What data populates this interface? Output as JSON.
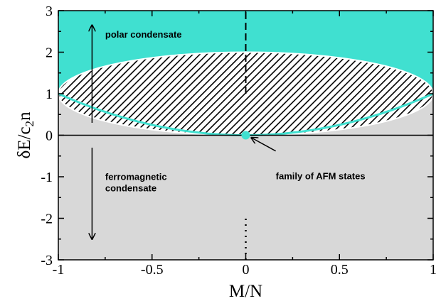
{
  "chart_data": {
    "type": "area",
    "xlabel": "M/N",
    "ylabel_main": "δE/c",
    "ylabel_sub": "2",
    "ylabel_tail": "n",
    "xlim": [
      -1,
      1
    ],
    "ylim": [
      -3,
      3
    ],
    "xticks": [
      -1,
      -0.5,
      0,
      0.5,
      1
    ],
    "xtick_labels": [
      "-1",
      "-0.5",
      "0",
      "0.5",
      "1"
    ],
    "yticks": [
      -3,
      -2,
      -1,
      0,
      1,
      2,
      3
    ],
    "ytick_labels": [
      "-3",
      "-2",
      "-1",
      "0",
      "1",
      "2",
      "3"
    ],
    "regions": {
      "upper_fill_color": "#40E0D0",
      "lower_fill_color": "#D8D8D8",
      "ellipse": {
        "center": [
          0,
          1
        ],
        "radius_x": 1,
        "radius_y": 1,
        "fill": "hatched",
        "outline_color": "#ffffff"
      }
    },
    "boundary_curve": {
      "type": "parabola",
      "formula": "y = x^2",
      "color": "#40E0D0"
    },
    "point": {
      "x": 0,
      "y": 0,
      "color": "#40E0D0"
    },
    "dashed_line": {
      "x": 0,
      "y_from": 1,
      "y_to": 3
    },
    "dotted_line": {
      "x": 0,
      "y_from": -3,
      "y_to": -2
    },
    "annotations": {
      "polar": "polar condensate",
      "ferro_line1": "ferromagnetic",
      "ferro_line2": "condensate",
      "afm": "family of AFM states"
    },
    "arrows": {
      "up_arrow": {
        "x": -0.82,
        "y_from": 0.3,
        "y_to": 2.65
      },
      "down_arrow": {
        "x": -0.82,
        "y_from": -0.3,
        "y_to": -2.5
      },
      "afm_arrow": {
        "from": [
          0.16,
          -0.38
        ],
        "to": [
          0.03,
          -0.06
        ]
      }
    }
  }
}
